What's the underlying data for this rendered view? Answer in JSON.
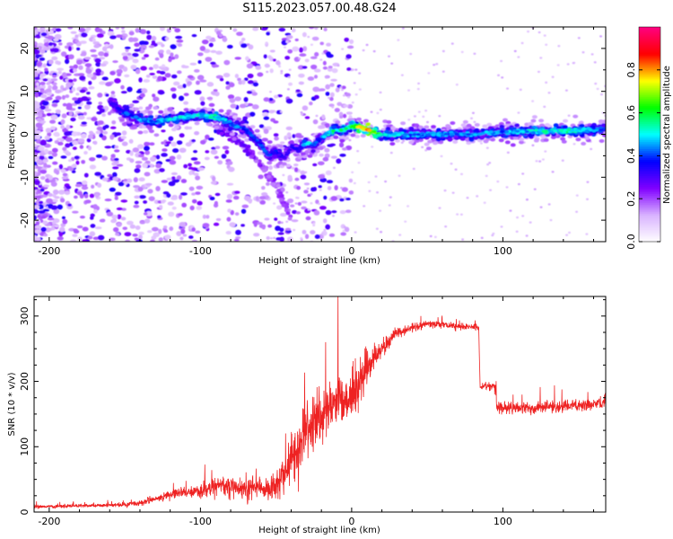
{
  "title": "S115.2023.057.00.48.G24",
  "chart_data": [
    {
      "type": "heatmap",
      "xlabel": "Height of straight line (km)",
      "ylabel": "Frequency (Hz)",
      "xlim": [
        -210,
        168
      ],
      "ylim": [
        -25,
        25
      ],
      "x_ticks": [
        -200,
        -100,
        0,
        100
      ],
      "x_tick_labels": [
        "-200",
        "-100",
        "0",
        "100"
      ],
      "y_ticks": [
        -20,
        -10,
        0,
        10,
        20
      ],
      "y_tick_labels": [
        "-20",
        "-10",
        "0",
        "10",
        "20"
      ],
      "colorbar": {
        "label": "Normalized spectral amplitude",
        "range": [
          0,
          1
        ],
        "ticks": [
          0.0,
          0.2,
          0.4,
          0.6,
          0.8
        ],
        "tick_labels": [
          "0.0",
          "0.2",
          "0.4",
          "0.6",
          "0.8"
        ],
        "colors": [
          "#ffffff",
          "#d9b3ff",
          "#8000ff",
          "#0000ff",
          "#00ffff",
          "#00ff00",
          "#ffff00",
          "#ff0000",
          "#ff0080"
        ]
      },
      "track": {
        "x": [
          -160,
          -150,
          -140,
          -130,
          -120,
          -110,
          -100,
          -90,
          -80,
          -70,
          -60,
          -55,
          -50,
          -45,
          -40,
          -35,
          -30,
          -25,
          -20,
          -15,
          -10,
          -5,
          0,
          5,
          10,
          20,
          40,
          60,
          80,
          100,
          120,
          140,
          160,
          168
        ],
        "y": [
          7.5,
          5,
          3.5,
          3,
          3.5,
          4,
          4.5,
          4,
          2.5,
          1,
          -2.5,
          -5,
          -4,
          -5.5,
          -3,
          -3.5,
          -2,
          -2.5,
          -1,
          0.5,
          1,
          1,
          2,
          1.5,
          1,
          0,
          0,
          0,
          0,
          0.5,
          0.7,
          0.8,
          1,
          1.2
        ],
        "amplitude": [
          0.3,
          0.4,
          0.45,
          0.45,
          0.5,
          0.5,
          0.5,
          0.55,
          0.45,
          0.4,
          0.4,
          0.4,
          0.35,
          0.35,
          0.35,
          0.35,
          0.5,
          0.4,
          0.4,
          0.55,
          0.55,
          0.55,
          0.6,
          0.75,
          0.85,
          0.5,
          0.45,
          0.45,
          0.45,
          0.45,
          0.5,
          0.55,
          0.45,
          0.4
        ]
      },
      "branch": {
        "x": [
          -90,
          -80,
          -70,
          -60,
          -50,
          -45,
          -40
        ],
        "y": [
          2,
          0,
          -3,
          -7,
          -12,
          -16,
          -19
        ],
        "amplitude": [
          0.3,
          0.25,
          0.25,
          0.2,
          0.2,
          0.2,
          0.2
        ]
      }
    },
    {
      "type": "line",
      "xlabel": "Height of straight line (km)",
      "ylabel": "SNR (10 * v/v)",
      "xlim": [
        -210,
        168
      ],
      "ylim": [
        0,
        330
      ],
      "x_ticks": [
        -200,
        -100,
        0,
        100
      ],
      "x_tick_labels": [
        "-200",
        "-100",
        "0",
        "100"
      ],
      "y_ticks": [
        0,
        100,
        200,
        300
      ],
      "y_tick_labels": [
        "0",
        "100",
        "200",
        "300"
      ],
      "color": "#ee2222",
      "series": [
        {
          "x": [
            -210,
            -190,
            -170,
            -160,
            -150,
            -140,
            -130,
            -120,
            -110,
            -100,
            -90,
            -80,
            -75,
            -70,
            -65,
            -60,
            -55,
            -50,
            -45,
            -40,
            -35,
            -30,
            -25,
            -20,
            -15,
            -10,
            -5,
            0,
            5,
            10,
            15,
            20,
            25,
            30,
            40,
            50,
            60,
            70,
            80,
            84,
            85,
            88,
            95,
            96,
            100,
            120,
            140,
            160,
            168
          ],
          "y": [
            8,
            9,
            10,
            10,
            11,
            14,
            20,
            26,
            30,
            33,
            38,
            40,
            42,
            34,
            35,
            38,
            36,
            40,
            55,
            80,
            100,
            120,
            140,
            150,
            165,
            175,
            175,
            180,
            200,
            220,
            235,
            250,
            262,
            275,
            283,
            287,
            287,
            285,
            283,
            283,
            190,
            192,
            190,
            160,
            160,
            160,
            162,
            166,
            170
          ],
          "noise": [
            3,
            3,
            3,
            3,
            4,
            5,
            6,
            8,
            10,
            12,
            14,
            16,
            20,
            25,
            20,
            18,
            20,
            25,
            30,
            40,
            45,
            50,
            50,
            45,
            40,
            40,
            45,
            50,
            45,
            35,
            20,
            15,
            12,
            10,
            7,
            6,
            6,
            6,
            6,
            6,
            8,
            8,
            8,
            10,
            10,
            10,
            10,
            10,
            10
          ]
        }
      ]
    }
  ]
}
